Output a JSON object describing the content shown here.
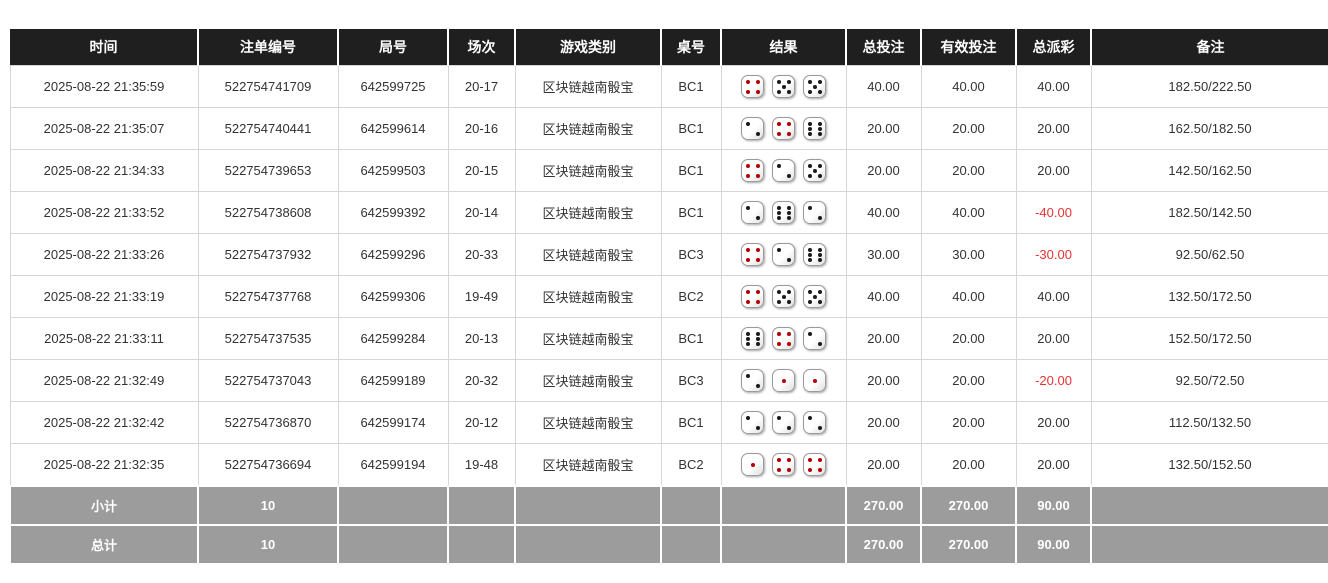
{
  "colors": {
    "header_bg": "#1f1f1f",
    "total_bet_blue": "#3a6fd0",
    "negative_red": "#e63333",
    "summary_bg": "#9c9c9c",
    "dice_pip_red": "#b40000",
    "dice_pip_black": "#1a1a1a"
  },
  "table": {
    "headers": [
      "时间",
      "注单编号",
      "局号",
      "场次",
      "游戏类别",
      "桌号",
      "结果",
      "总投注",
      "有效投注",
      "总派彩",
      "备注"
    ],
    "rows": [
      {
        "time": "2025-08-22 21:35:59",
        "bet_no": "522754741709",
        "round_no": "642599725",
        "session": "20-17",
        "game": "区块链越南骰宝",
        "table_no": "BC1",
        "dice": [
          {
            "value": 4,
            "color": "red"
          },
          {
            "value": 5,
            "color": "black"
          },
          {
            "value": 5,
            "color": "black"
          }
        ],
        "total_bet": "40.00",
        "valid_bet": "40.00",
        "payout": "40.00",
        "remark": "182.50/222.50"
      },
      {
        "time": "2025-08-22 21:35:07",
        "bet_no": "522754740441",
        "round_no": "642599614",
        "session": "20-16",
        "game": "区块链越南骰宝",
        "table_no": "BC1",
        "dice": [
          {
            "value": 2,
            "color": "black"
          },
          {
            "value": 4,
            "color": "red"
          },
          {
            "value": 6,
            "color": "black"
          }
        ],
        "total_bet": "20.00",
        "valid_bet": "20.00",
        "payout": "20.00",
        "remark": "162.50/182.50"
      },
      {
        "time": "2025-08-22 21:34:33",
        "bet_no": "522754739653",
        "round_no": "642599503",
        "session": "20-15",
        "game": "区块链越南骰宝",
        "table_no": "BC1",
        "dice": [
          {
            "value": 4,
            "color": "red"
          },
          {
            "value": 2,
            "color": "black"
          },
          {
            "value": 5,
            "color": "black"
          }
        ],
        "total_bet": "20.00",
        "valid_bet": "20.00",
        "payout": "20.00",
        "remark": "142.50/162.50"
      },
      {
        "time": "2025-08-22 21:33:52",
        "bet_no": "522754738608",
        "round_no": "642599392",
        "session": "20-14",
        "game": "区块链越南骰宝",
        "table_no": "BC1",
        "dice": [
          {
            "value": 2,
            "color": "black"
          },
          {
            "value": 6,
            "color": "black"
          },
          {
            "value": 2,
            "color": "black"
          }
        ],
        "total_bet": "40.00",
        "valid_bet": "40.00",
        "payout": "-40.00",
        "remark": "182.50/142.50"
      },
      {
        "time": "2025-08-22 21:33:26",
        "bet_no": "522754737932",
        "round_no": "642599296",
        "session": "20-33",
        "game": "区块链越南骰宝",
        "table_no": "BC3",
        "dice": [
          {
            "value": 4,
            "color": "red"
          },
          {
            "value": 2,
            "color": "black"
          },
          {
            "value": 6,
            "color": "black"
          }
        ],
        "total_bet": "30.00",
        "valid_bet": "30.00",
        "payout": "-30.00",
        "remark": "92.50/62.50"
      },
      {
        "time": "2025-08-22 21:33:19",
        "bet_no": "522754737768",
        "round_no": "642599306",
        "session": "19-49",
        "game": "区块链越南骰宝",
        "table_no": "BC2",
        "dice": [
          {
            "value": 4,
            "color": "red"
          },
          {
            "value": 5,
            "color": "black"
          },
          {
            "value": 5,
            "color": "black"
          }
        ],
        "total_bet": "40.00",
        "valid_bet": "40.00",
        "payout": "40.00",
        "remark": "132.50/172.50"
      },
      {
        "time": "2025-08-22 21:33:11",
        "bet_no": "522754737535",
        "round_no": "642599284",
        "session": "20-13",
        "game": "区块链越南骰宝",
        "table_no": "BC1",
        "dice": [
          {
            "value": 6,
            "color": "black"
          },
          {
            "value": 4,
            "color": "red"
          },
          {
            "value": 2,
            "color": "black"
          }
        ],
        "total_bet": "20.00",
        "valid_bet": "20.00",
        "payout": "20.00",
        "remark": "152.50/172.50"
      },
      {
        "time": "2025-08-22 21:32:49",
        "bet_no": "522754737043",
        "round_no": "642599189",
        "session": "20-32",
        "game": "区块链越南骰宝",
        "table_no": "BC3",
        "dice": [
          {
            "value": 2,
            "color": "black"
          },
          {
            "value": 1,
            "color": "red"
          },
          {
            "value": 1,
            "color": "red"
          }
        ],
        "total_bet": "20.00",
        "valid_bet": "20.00",
        "payout": "-20.00",
        "remark": "92.50/72.50"
      },
      {
        "time": "2025-08-22 21:32:42",
        "bet_no": "522754736870",
        "round_no": "642599174",
        "session": "20-12",
        "game": "区块链越南骰宝",
        "table_no": "BC1",
        "dice": [
          {
            "value": 2,
            "color": "black"
          },
          {
            "value": 2,
            "color": "black"
          },
          {
            "value": 2,
            "color": "black"
          }
        ],
        "total_bet": "20.00",
        "valid_bet": "20.00",
        "payout": "20.00",
        "remark": "112.50/132.50"
      },
      {
        "time": "2025-08-22 21:32:35",
        "bet_no": "522754736694",
        "round_no": "642599194",
        "session": "19-48",
        "game": "区块链越南骰宝",
        "table_no": "BC2",
        "dice": [
          {
            "value": 1,
            "color": "red"
          },
          {
            "value": 4,
            "color": "red"
          },
          {
            "value": 4,
            "color": "red"
          }
        ],
        "total_bet": "20.00",
        "valid_bet": "20.00",
        "payout": "20.00",
        "remark": "132.50/152.50"
      }
    ],
    "summary_rows": [
      {
        "label": "小计",
        "count": "10",
        "total_bet": "270.00",
        "valid_bet": "270.00",
        "payout": "90.00",
        "remark": ""
      },
      {
        "label": "总计",
        "count": "10",
        "total_bet": "270.00",
        "valid_bet": "270.00",
        "payout": "90.00",
        "remark": ""
      }
    ]
  }
}
